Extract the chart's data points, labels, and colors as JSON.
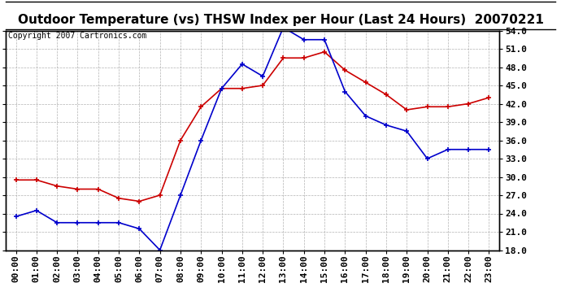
{
  "title": "Outdoor Temperature (vs) THSW Index per Hour (Last 24 Hours)  20070221",
  "copyright": "Copyright 2007 Cartronics.com",
  "hours": [
    "00:00",
    "01:00",
    "02:00",
    "03:00",
    "04:00",
    "05:00",
    "06:00",
    "07:00",
    "08:00",
    "09:00",
    "10:00",
    "11:00",
    "12:00",
    "13:00",
    "14:00",
    "15:00",
    "16:00",
    "17:00",
    "18:00",
    "19:00",
    "20:00",
    "21:00",
    "22:00",
    "23:00"
  ],
  "outdoor_temp": [
    29.5,
    29.5,
    28.5,
    28.0,
    28.0,
    26.5,
    26.0,
    27.0,
    36.0,
    41.5,
    44.5,
    44.5,
    45.0,
    49.5,
    49.5,
    50.5,
    47.5,
    45.5,
    43.5,
    41.0,
    41.5,
    41.5,
    42.0,
    43.0
  ],
  "thsw_index": [
    23.5,
    24.5,
    22.5,
    22.5,
    22.5,
    22.5,
    21.5,
    18.0,
    27.0,
    36.0,
    44.5,
    48.5,
    46.5,
    54.5,
    52.5,
    52.5,
    44.0,
    40.0,
    38.5,
    37.5,
    33.0,
    34.5,
    34.5,
    34.5
  ],
  "temp_color": "#cc0000",
  "thsw_color": "#0000cc",
  "ylim_min": 18.0,
  "ylim_max": 54.0,
  "yticks": [
    18.0,
    21.0,
    24.0,
    27.0,
    30.0,
    33.0,
    36.0,
    39.0,
    42.0,
    45.0,
    48.0,
    51.0,
    54.0
  ],
  "bg_color": "#ffffff",
  "plot_bg_color": "#ffffff",
  "grid_color": "#aaaaaa",
  "title_fontsize": 11,
  "copyright_fontsize": 7,
  "tick_fontsize": 8
}
